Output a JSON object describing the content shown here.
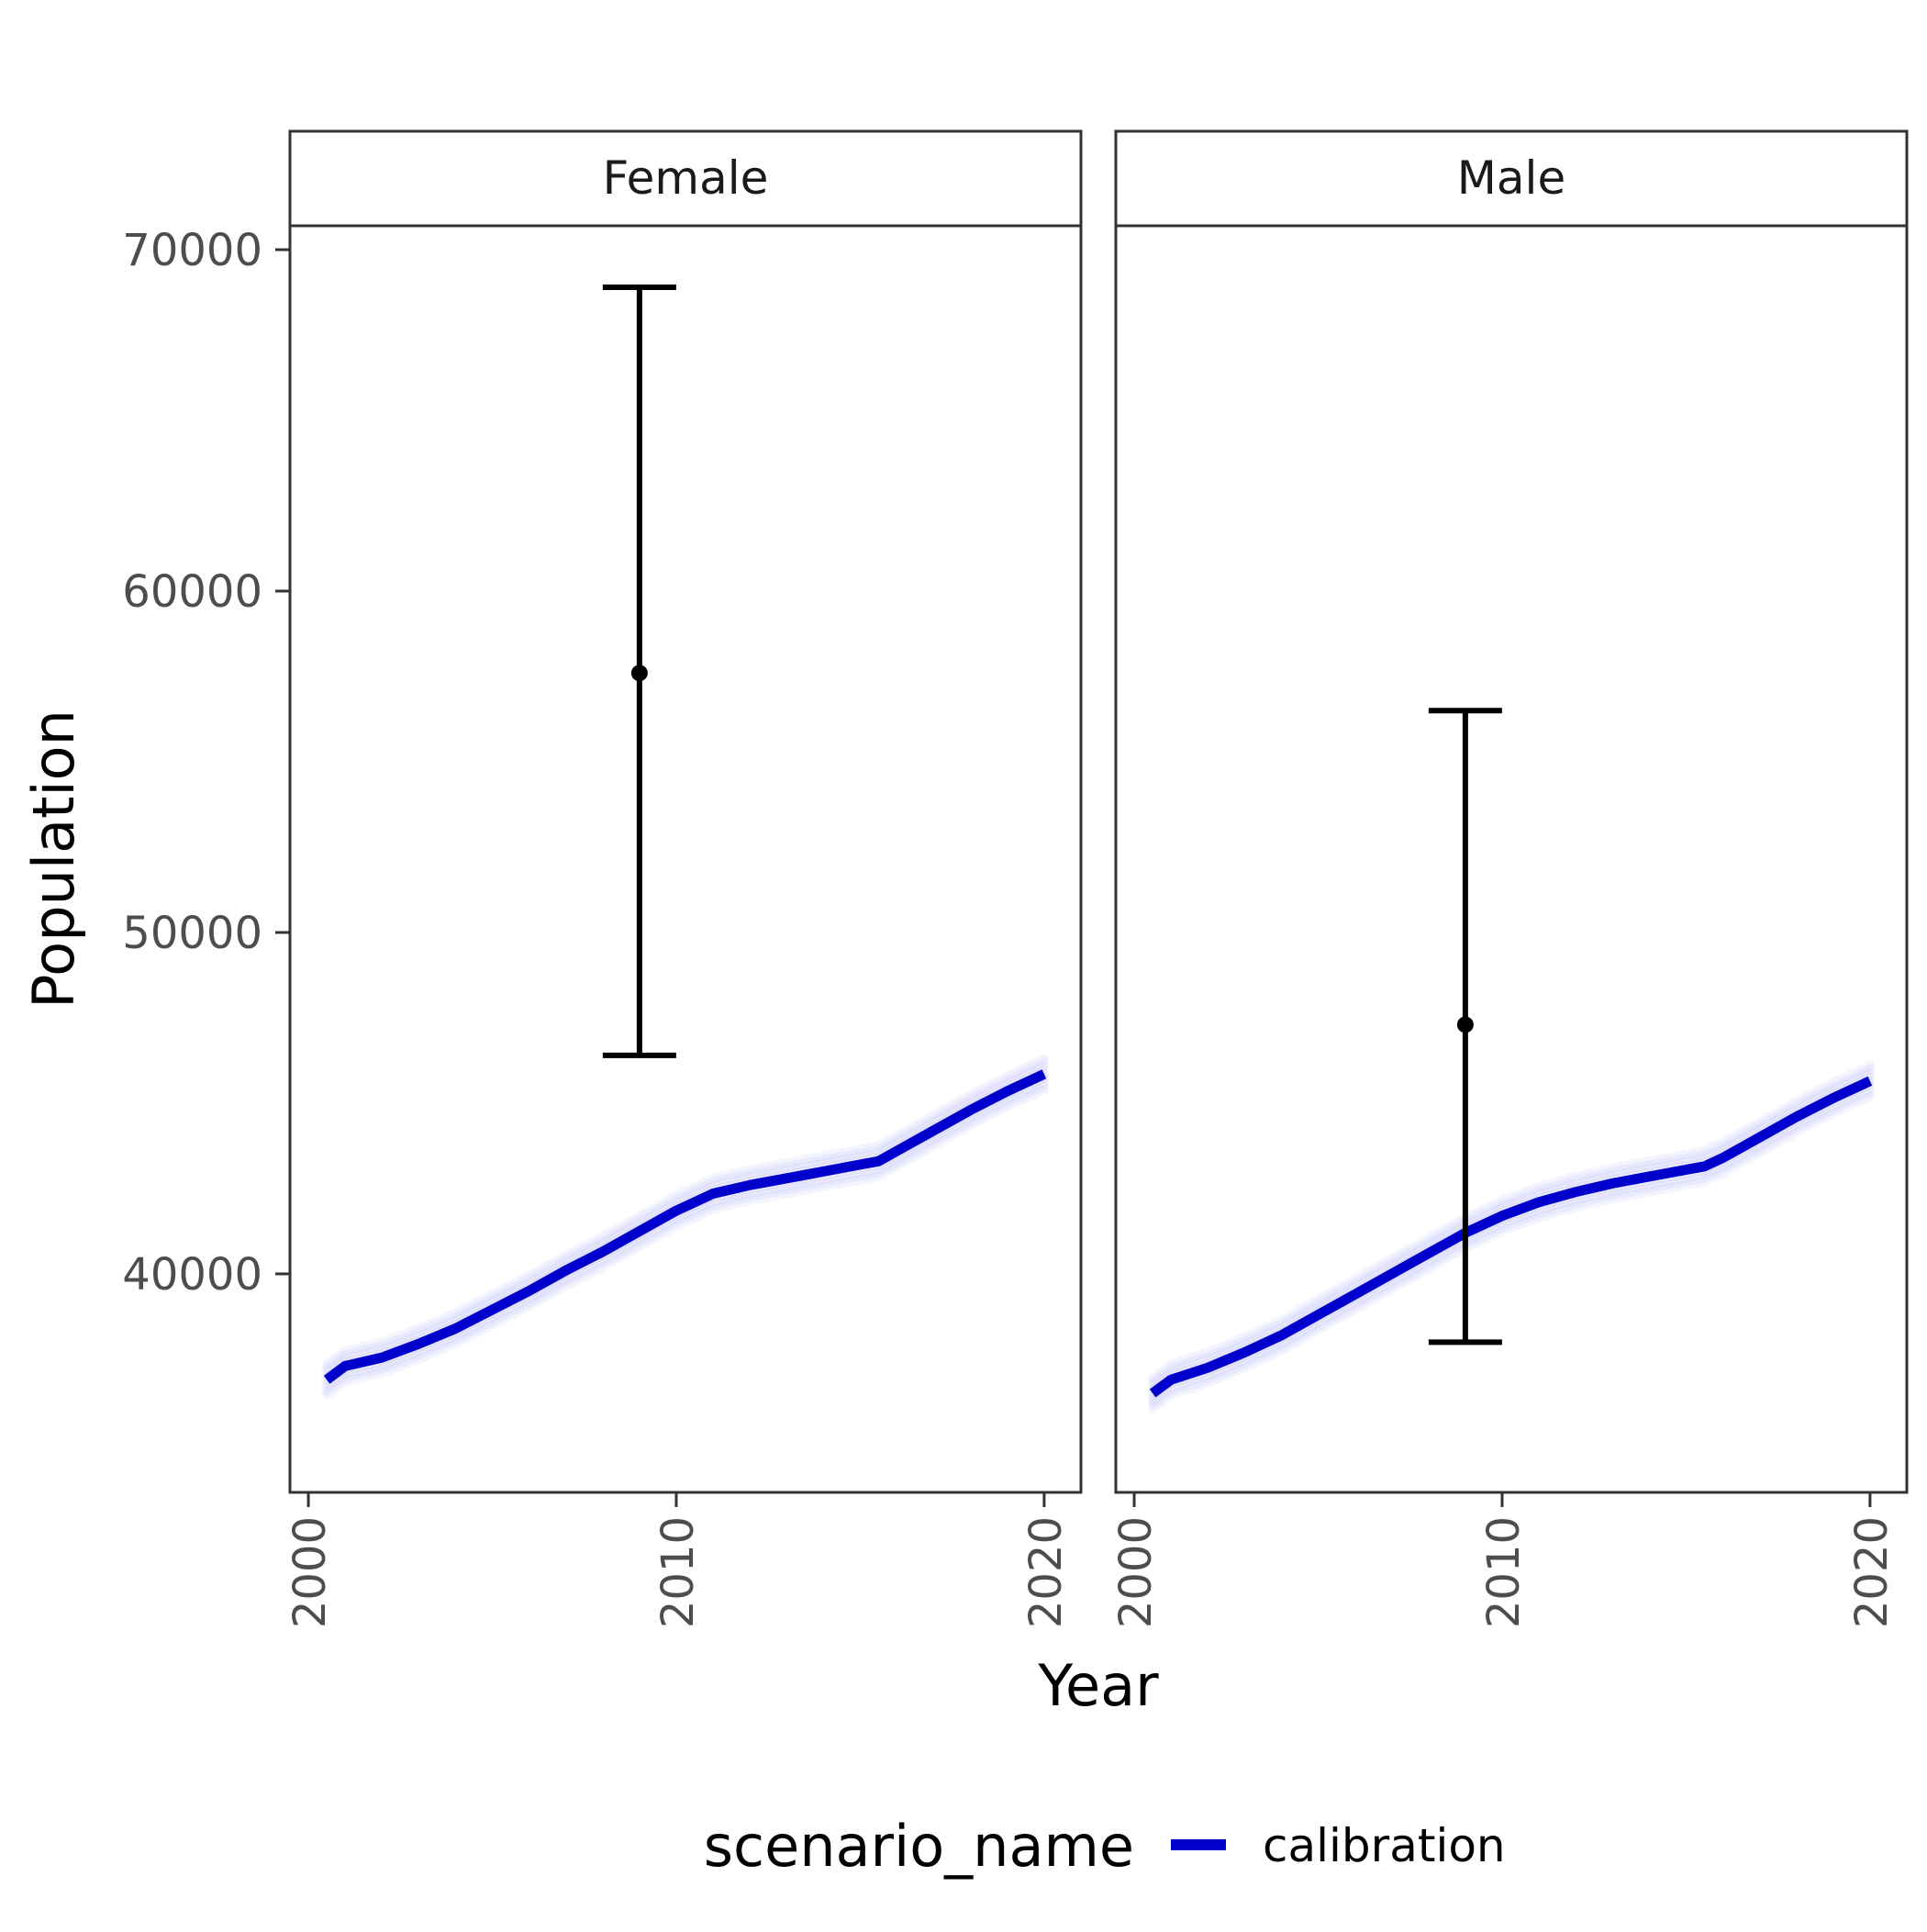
{
  "chart_data": {
    "type": "line",
    "xlabel": "Year",
    "ylabel": "Population",
    "xlim": [
      1999.5,
      2021
    ],
    "ylim": [
      33600,
      70700
    ],
    "x_ticks": [
      2000,
      2010,
      2020
    ],
    "y_ticks": [
      40000,
      50000,
      60000,
      70000
    ],
    "x_tick_labels": [
      "2000",
      "2010",
      "2020"
    ],
    "y_tick_labels": [
      "40000",
      "50000",
      "60000",
      "70000"
    ],
    "legend": {
      "title": "scenario_name",
      "position": "bottom",
      "entries": [
        {
          "label": "calibration",
          "color": "#0000cc"
        }
      ]
    },
    "colors": {
      "line": "#0000cc",
      "band": "#4a4af0",
      "errorbar": "#000000"
    },
    "x": [
      2000.5,
      2001,
      2002,
      2003,
      2004,
      2005,
      2006,
      2007,
      2008,
      2009,
      2010,
      2011,
      2012,
      2013,
      2014,
      2015,
      2015.5,
      2016,
      2017,
      2018,
      2019,
      2020
    ],
    "panels": [
      {
        "strip": "Female",
        "series": [
          {
            "name": "calibration",
            "values": [
              36900,
              37300,
              37550,
              37950,
              38400,
              38950,
              39500,
              40100,
              40650,
              41250,
              41850,
              42350,
              42600,
              42800,
              43000,
              43200,
              43300,
              43600,
              44200,
              44800,
              45350,
              45850
            ]
          }
        ],
        "band_halfwidth": 450,
        "observed": {
          "x": 2009,
          "y": 57600,
          "ymin": 46400,
          "ymax": 68900
        }
      },
      {
        "strip": "Male",
        "series": [
          {
            "name": "calibration",
            "values": [
              36500,
              36900,
              37250,
              37700,
              38200,
              38800,
              39400,
              40000,
              40600,
              41200,
              41700,
              42100,
              42400,
              42650,
              42850,
              43050,
              43150,
              43400,
              44000,
              44600,
              45150,
              45650
            ]
          }
        ],
        "band_halfwidth": 450,
        "observed": {
          "x": 2009,
          "y": 47300,
          "ymin": 38000,
          "ymax": 56500
        }
      }
    ]
  }
}
